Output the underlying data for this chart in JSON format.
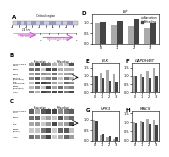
{
  "panel_D": {
    "title": "LIF",
    "xlabel_vals": [
      "0",
      "1",
      "2",
      "3"
    ],
    "starvation": [
      1.0,
      0.9,
      0.85,
      0.75
    ],
    "refeeding": [
      1.05,
      1.1,
      1.15,
      1.0
    ],
    "ylim": [
      0,
      1.4
    ],
    "yticks": [
      0.0,
      0.5,
      1.0
    ]
  },
  "panel_E": {
    "title": "ELK",
    "xlabel_vals": [
      "0",
      "1",
      "2",
      "3"
    ],
    "starvation": [
      1.0,
      1.2,
      1.35,
      1.1
    ],
    "refeeding": [
      1.0,
      0.85,
      0.7,
      0.65
    ],
    "ylim": [
      0,
      1.8
    ],
    "yticks": [
      0.0,
      0.5,
      1.0,
      1.5
    ]
  },
  "panel_F": {
    "title": "GAPDH/BT",
    "xlabel_vals": [
      "0",
      "1",
      "2",
      "3"
    ],
    "starvation": [
      1.0,
      1.1,
      1.3,
      1.45
    ],
    "refeeding": [
      1.0,
      0.9,
      0.85,
      1.0
    ],
    "ylim": [
      0,
      1.8
    ],
    "yticks": [
      0.0,
      0.5,
      1.0,
      1.5
    ]
  },
  "panel_G": {
    "title": "VPR3",
    "xlabel_vals": [
      "0",
      "1",
      "2",
      "3"
    ],
    "starvation": [
      1.0,
      0.25,
      0.15,
      0.1
    ],
    "refeeding": [
      0.95,
      0.3,
      0.2,
      0.18
    ],
    "ylim": [
      0,
      1.4
    ],
    "yticks": [
      0.0,
      0.5,
      1.0
    ]
  },
  "panel_H": {
    "title": "MACS",
    "xlabel_vals": [
      "0",
      "1",
      "2",
      "3"
    ],
    "starvation": [
      1.0,
      1.05,
      1.2,
      1.15
    ],
    "refeeding": [
      0.95,
      1.0,
      0.9,
      0.85
    ],
    "ylim": [
      0,
      1.6
    ],
    "yticks": [
      0.0,
      0.5,
      1.0,
      1.5
    ]
  },
  "colors": {
    "starvation": "#aaaaaa",
    "refeeding": "#444444",
    "background": "#ffffff"
  },
  "legend_labels": [
    "Starvation",
    "Refeeding"
  ],
  "wb_B_rows": [
    "Focus area\nCells",
    "Cdx2",
    "Cdx2",
    "SMAP1\n(phospho)",
    "ELK\nconserved",
    "LGBP\n(phos/tot)",
    "Actin"
  ],
  "wb_C_rows": [
    "Focus area\ncells",
    "Cdx2",
    "ELK",
    "LGBP\n(phos)",
    "Actin"
  ],
  "wb_cols": [
    "0",
    "1",
    "2",
    "3",
    "0",
    "1",
    "2",
    "3"
  ]
}
